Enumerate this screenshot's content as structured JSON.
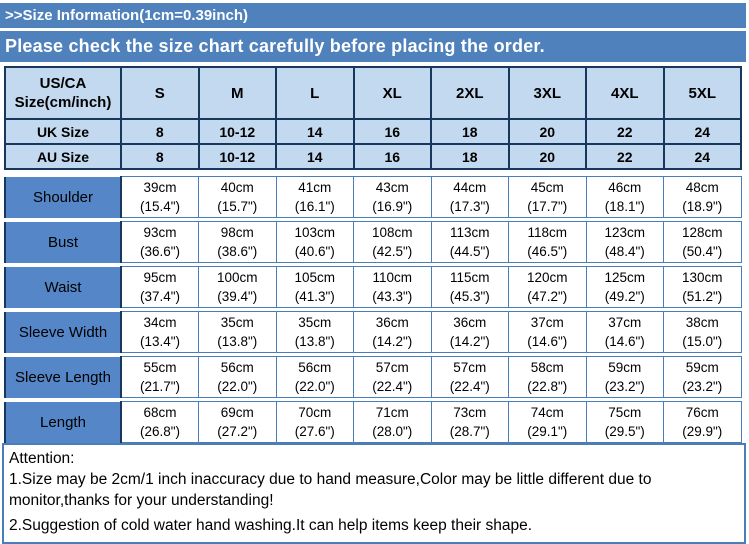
{
  "banners": {
    "size_info": ">>Size Information(1cm=0.39inch)",
    "check_chart": "Please check the size chart carefully before placing the order."
  },
  "table": {
    "header": {
      "label_line1": "US/CA",
      "label_line2": "Size(cm/inch)",
      "sizes": [
        "S",
        "M",
        "L",
        "XL",
        "2XL",
        "3XL",
        "4XL",
        "5XL"
      ]
    },
    "uk_row": {
      "label": "UK Size",
      "values": [
        "8",
        "10-12",
        "14",
        "16",
        "18",
        "20",
        "22",
        "24"
      ]
    },
    "au_row": {
      "label": "AU Size",
      "values": [
        "8",
        "10-12",
        "14",
        "16",
        "18",
        "20",
        "22",
        "24"
      ]
    },
    "measurements": [
      {
        "label": "Shoulder",
        "cm": [
          "39cm",
          "40cm",
          "41cm",
          "43cm",
          "44cm",
          "45cm",
          "46cm",
          "48cm"
        ],
        "inch": [
          "(15.4\")",
          "(15.7\")",
          "(16.1\")",
          "(16.9\")",
          "(17.3\")",
          "(17.7\")",
          "(18.1\")",
          "(18.9\")"
        ]
      },
      {
        "label": "Bust",
        "cm": [
          "93cm",
          "98cm",
          "103cm",
          "108cm",
          "113cm",
          "118cm",
          "123cm",
          "128cm"
        ],
        "inch": [
          "(36.6\")",
          "(38.6\")",
          "(40.6\")",
          "(42.5\")",
          "(44.5\")",
          "(46.5\")",
          "(48.4\")",
          "(50.4\")"
        ]
      },
      {
        "label": "Waist",
        "cm": [
          "95cm",
          "100cm",
          "105cm",
          "110cm",
          "115cm",
          "120cm",
          "125cm",
          "130cm"
        ],
        "inch": [
          "(37.4\")",
          "(39.4\")",
          "(41.3\")",
          "(43.3\")",
          "(45.3\")",
          "(47.2\")",
          "(49.2\")",
          "(51.2\")"
        ]
      },
      {
        "label": "Sleeve Width",
        "cm": [
          "34cm",
          "35cm",
          "35cm",
          "36cm",
          "36cm",
          "37cm",
          "37cm",
          "38cm"
        ],
        "inch": [
          "(13.4\")",
          "(13.8\")",
          "(13.8\")",
          "(14.2\")",
          "(14.2\")",
          "(14.6\")",
          "(14.6\")",
          "(15.0\")"
        ]
      },
      {
        "label": "Sleeve Length",
        "cm": [
          "55cm",
          "56cm",
          "56cm",
          "57cm",
          "57cm",
          "58cm",
          "59cm",
          "59cm"
        ],
        "inch": [
          "(21.7\")",
          "(22.0\")",
          "(22.0\")",
          "(22.4\")",
          "(22.4\")",
          "(22.8\")",
          "(23.2\")",
          "(23.2\")"
        ]
      },
      {
        "label": "Length",
        "cm": [
          "68cm",
          "69cm",
          "70cm",
          "71cm",
          "73cm",
          "74cm",
          "75cm",
          "76cm"
        ],
        "inch": [
          "(26.8\")",
          "(27.2\")",
          "(27.6\")",
          "(28.0\")",
          "(28.7\")",
          "(29.1\")",
          "(29.5\")",
          "(29.9\")"
        ]
      }
    ]
  },
  "attention": {
    "title": "Attention:",
    "note1": "1.Size may be 2cm/1 inch inaccuracy due to hand measure,Color may be little different due to monitor,thanks for your understanding!",
    "note2": "2.Suggestion of cold water hand washing.It can help items keep their shape."
  },
  "colors": {
    "bar-bg": "#4f81bd",
    "header-bg": "#c3d9f0",
    "label-bg": "#5587c8",
    "grid-blue": "#4a7ebb",
    "dark-border": "#17375d"
  }
}
